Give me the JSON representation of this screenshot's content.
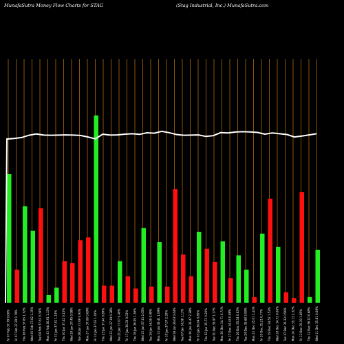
{
  "header": {
    "left": "MunafaSutra  Money Flow  Charts for STAG",
    "right": "(Stag Industrial, Inc.) MunafaSutra.com"
  },
  "chart_data": {
    "type": "bar",
    "title": "MunafaSutra  Money Flow  Charts for STAG",
    "subtitle": "(Stag Industrial, Inc.) MunafaSutra.com",
    "xlabel": "",
    "ylabel": "",
    "grid": true,
    "colors": {
      "up": "#22ee22",
      "down": "#ff1010",
      "price_line": "#ffffff",
      "grid": "#b06a10",
      "background": "#000000"
    },
    "categories": [
      "Fri 07 Feb 37.79 0.00%",
      "Fri 07 Feb 37.29 0.79%",
      "Thu 06 Feb 37.65 1.72%",
      "Wed 05 Feb 37.62 1.35%",
      "Tue 04 Feb 37.61 0.34%",
      "Mon 03 Feb 36.91 1.15%",
      "Fri 31 Jan 37.41 1.14%",
      "Thu 30 Jan 37.42 0.15%",
      "Wed 29 Jan 37.45 0.98%",
      "Tue 28 Jan 37.69 0.93%",
      "Mon 27 Jan 37.06 0.69%",
      "Fri 24 Jan 37.62 1.42%",
      "Thu 23 Jan 37.40 0.89%",
      "Wed 22 Jan 37.19 0.28%",
      "Tue 21 Jan 37.07 0.40%",
      "Fri 17 Jan 36.30 0.03%",
      "Thu 16 Jan 36.95 1.36%",
      "Wed 15 Jan 37.11 2.05%",
      "Tue 14 Jan 36.59 0.99%",
      "Mon 13 Jan 36.41 1.09%",
      "Fri 10 Jan 37.07 2.30%",
      "Wed 08 Jan 36.63 0.64%",
      "Tue 07 Jan 36.58 1.13%",
      "Mon 06 Jan 36.47 2.38%",
      "Fri 03 Jan 36.64 0.85%",
      "Thu 02 Jan 35.72 0.20%",
      "Tue 31 Dec 35.97 1.17%",
      "Mon 30 Dec 34.71 0.71%",
      "Fri 27 Dec 34.44 0.98%",
      "Thu 26 Dec 35.54 0.63%",
      "Tue 24 Dec 35.68 2.09%",
      "Mon 23 Dec 35.01 1.43%",
      "Fri 20 Dec 35.21 0.77%",
      "Thu 19 Dec 34.52 1.53%",
      "Wed 18 Dec 34.72 0.66%",
      "Tue 17 Dec 35.33 0.56%",
      "Mon 16 Dec 35.13 2.32%",
      "Fri 13 Dec 35.39 1.85%",
      "Thu 12 Dec 36.10 0.68%",
      "Wed 11 Dec 35.81 0.68%"
    ],
    "money_flow": [
      {
        "dir": "up",
        "value": 68
      },
      {
        "dir": "down",
        "value": 17.5
      },
      {
        "dir": "up",
        "value": 51
      },
      {
        "dir": "up",
        "value": 38
      },
      {
        "dir": "down",
        "value": 50
      },
      {
        "dir": "up",
        "value": 4
      },
      {
        "dir": "up",
        "value": 8
      },
      {
        "dir": "down",
        "value": 22
      },
      {
        "dir": "down",
        "value": 21
      },
      {
        "dir": "down",
        "value": 33
      },
      {
        "dir": "down",
        "value": 34.5
      },
      {
        "dir": "up",
        "value": 99
      },
      {
        "dir": "down",
        "value": 9
      },
      {
        "dir": "down",
        "value": 9
      },
      {
        "dir": "up",
        "value": 22
      },
      {
        "dir": "down",
        "value": 14
      },
      {
        "dir": "down",
        "value": 7.5
      },
      {
        "dir": "up",
        "value": 39.5
      },
      {
        "dir": "down",
        "value": 8.5
      },
      {
        "dir": "up",
        "value": 32
      },
      {
        "dir": "down",
        "value": 8.5
      },
      {
        "dir": "down",
        "value": 60
      },
      {
        "dir": "down",
        "value": 25.5
      },
      {
        "dir": "down",
        "value": 14
      },
      {
        "dir": "up",
        "value": 37.5
      },
      {
        "dir": "down",
        "value": 28.5
      },
      {
        "dir": "down",
        "value": 21.5
      },
      {
        "dir": "up",
        "value": 32.5
      },
      {
        "dir": "down",
        "value": 13
      },
      {
        "dir": "up",
        "value": 25
      },
      {
        "dir": "up",
        "value": 17.5
      },
      {
        "dir": "down",
        "value": 3
      },
      {
        "dir": "up",
        "value": 36.5
      },
      {
        "dir": "down",
        "value": 55
      },
      {
        "dir": "up",
        "value": 29.5
      },
      {
        "dir": "down",
        "value": 5.5
      },
      {
        "dir": "down",
        "value": 2.5
      },
      {
        "dir": "down",
        "value": 58.5
      },
      {
        "dir": "up",
        "value": 3
      },
      {
        "dir": "up",
        "value": 28
      }
    ],
    "price_line": [
      86.5,
      86.8,
      87.3,
      88.5,
      89.2,
      88.6,
      88.5,
      88.6,
      88.7,
      88.6,
      88.4,
      87.6,
      86.6,
      89.1,
      88.6,
      88.7,
      89.1,
      89.3,
      89.0,
      89.8,
      89.6,
      90.6,
      89.9,
      88.9,
      88.5,
      88.6,
      88.7,
      87.9,
      88.3,
      89.9,
      89.7,
      90.2,
      90.4,
      90.3,
      90.0,
      89.1,
      89.7,
      89.3,
      88.9,
      87.6,
      88.1,
      88.7,
      89.3
    ],
    "ylim": [
      0,
      100
    ]
  }
}
